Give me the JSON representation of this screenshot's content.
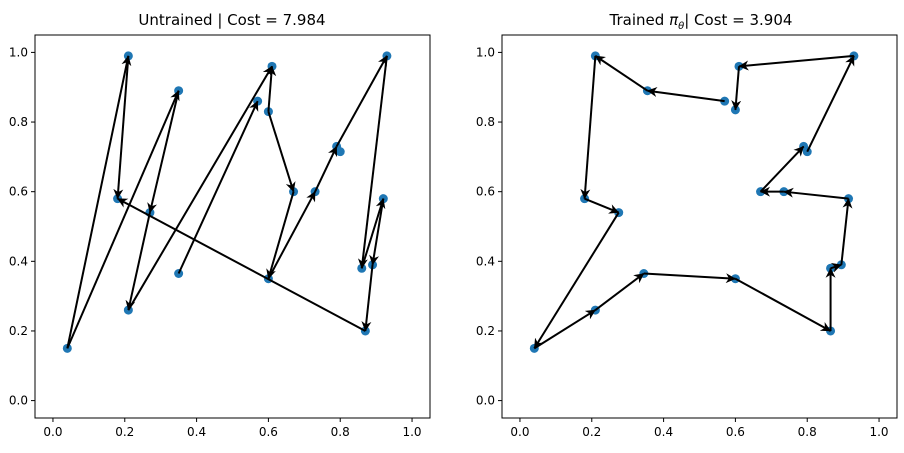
{
  "chart_data": [
    {
      "type": "scatter",
      "title": "Untrained | Cost = 7.984",
      "xlim": [
        -0.05,
        1.05
      ],
      "ylim": [
        -0.05,
        1.05
      ],
      "xticks": [
        "0.0",
        "0.2",
        "0.4",
        "0.6",
        "0.8",
        "1.0"
      ],
      "yticks": [
        "0.0",
        "0.2",
        "0.4",
        "0.6",
        "0.8",
        "1.0"
      ],
      "grid": false,
      "points": [
        {
          "x": 0.04,
          "y": 0.15
        },
        {
          "x": 0.21,
          "y": 0.99
        },
        {
          "x": 0.18,
          "y": 0.58
        },
        {
          "x": 0.35,
          "y": 0.89
        },
        {
          "x": 0.27,
          "y": 0.54
        },
        {
          "x": 0.21,
          "y": 0.26
        },
        {
          "x": 0.61,
          "y": 0.96
        },
        {
          "x": 0.57,
          "y": 0.86
        },
        {
          "x": 0.6,
          "y": 0.83
        },
        {
          "x": 0.35,
          "y": 0.365
        },
        {
          "x": 0.67,
          "y": 0.6
        },
        {
          "x": 0.6,
          "y": 0.35
        },
        {
          "x": 0.73,
          "y": 0.6
        },
        {
          "x": 0.79,
          "y": 0.73
        },
        {
          "x": 0.8,
          "y": 0.715
        },
        {
          "x": 0.93,
          "y": 0.99
        },
        {
          "x": 0.86,
          "y": 0.38
        },
        {
          "x": 0.89,
          "y": 0.39
        },
        {
          "x": 0.92,
          "y": 0.58
        },
        {
          "x": 0.87,
          "y": 0.2
        }
      ],
      "tour": [
        [
          0.04,
          0.15,
          0.21,
          0.99
        ],
        [
          0.21,
          0.99,
          0.18,
          0.58
        ],
        [
          0.87,
          0.2,
          0.18,
          0.58
        ],
        [
          0.04,
          0.15,
          0.35,
          0.89
        ],
        [
          0.35,
          0.89,
          0.27,
          0.54
        ],
        [
          0.27,
          0.54,
          0.21,
          0.26
        ],
        [
          0.21,
          0.26,
          0.61,
          0.96
        ],
        [
          0.35,
          0.365,
          0.57,
          0.86
        ],
        [
          0.6,
          0.83,
          0.61,
          0.96
        ],
        [
          0.6,
          0.83,
          0.67,
          0.6
        ],
        [
          0.67,
          0.6,
          0.6,
          0.35
        ],
        [
          0.6,
          0.35,
          0.73,
          0.6
        ],
        [
          0.73,
          0.6,
          0.79,
          0.73
        ],
        [
          0.79,
          0.73,
          0.93,
          0.99
        ],
        [
          0.93,
          0.99,
          0.86,
          0.38
        ],
        [
          0.86,
          0.38,
          0.92,
          0.58
        ],
        [
          0.92,
          0.58,
          0.89,
          0.39
        ],
        [
          0.89,
          0.39,
          0.87,
          0.2
        ]
      ]
    },
    {
      "type": "scatter",
      "title": "Trained π_θ| Cost = 3.904",
      "title_parts": {
        "prefix": "Trained ",
        "symbol": "π",
        "subscript": "θ",
        "suffix": "| Cost = 3.904"
      },
      "xlim": [
        -0.05,
        1.05
      ],
      "ylim": [
        -0.05,
        1.05
      ],
      "xticks": [
        "0.0",
        "0.2",
        "0.4",
        "0.6",
        "0.8",
        "1.0"
      ],
      "yticks": [
        "0.0",
        "0.2",
        "0.4",
        "0.6",
        "0.8",
        "1.0"
      ],
      "grid": false,
      "points": [
        {
          "x": 0.04,
          "y": 0.15
        },
        {
          "x": 0.21,
          "y": 0.99
        },
        {
          "x": 0.18,
          "y": 0.58
        },
        {
          "x": 0.355,
          "y": 0.89
        },
        {
          "x": 0.275,
          "y": 0.54
        },
        {
          "x": 0.21,
          "y": 0.26
        },
        {
          "x": 0.61,
          "y": 0.96
        },
        {
          "x": 0.57,
          "y": 0.86
        },
        {
          "x": 0.6,
          "y": 0.835
        },
        {
          "x": 0.345,
          "y": 0.365
        },
        {
          "x": 0.67,
          "y": 0.6
        },
        {
          "x": 0.6,
          "y": 0.35
        },
        {
          "x": 0.735,
          "y": 0.6
        },
        {
          "x": 0.79,
          "y": 0.73
        },
        {
          "x": 0.8,
          "y": 0.715
        },
        {
          "x": 0.93,
          "y": 0.99
        },
        {
          "x": 0.865,
          "y": 0.38
        },
        {
          "x": 0.895,
          "y": 0.39
        },
        {
          "x": 0.915,
          "y": 0.58
        },
        {
          "x": 0.865,
          "y": 0.2
        }
      ],
      "tour": [
        [
          0.93,
          0.99,
          0.61,
          0.96
        ],
        [
          0.61,
          0.96,
          0.6,
          0.835
        ],
        [
          0.57,
          0.86,
          0.355,
          0.89
        ],
        [
          0.355,
          0.89,
          0.21,
          0.99
        ],
        [
          0.21,
          0.99,
          0.18,
          0.58
        ],
        [
          0.18,
          0.58,
          0.275,
          0.54
        ],
        [
          0.275,
          0.54,
          0.04,
          0.15
        ],
        [
          0.04,
          0.15,
          0.21,
          0.26
        ],
        [
          0.21,
          0.26,
          0.345,
          0.365
        ],
        [
          0.345,
          0.365,
          0.6,
          0.35
        ],
        [
          0.6,
          0.35,
          0.865,
          0.2
        ],
        [
          0.865,
          0.2,
          0.865,
          0.38
        ],
        [
          0.865,
          0.38,
          0.895,
          0.39
        ],
        [
          0.895,
          0.39,
          0.915,
          0.58
        ],
        [
          0.915,
          0.58,
          0.735,
          0.6
        ],
        [
          0.735,
          0.6,
          0.67,
          0.6
        ],
        [
          0.67,
          0.6,
          0.79,
          0.73
        ],
        [
          0.8,
          0.715,
          0.93,
          0.99
        ]
      ]
    }
  ],
  "colors": {
    "point": "#1f77b4",
    "edge": "#000000",
    "axis": "#000000"
  }
}
